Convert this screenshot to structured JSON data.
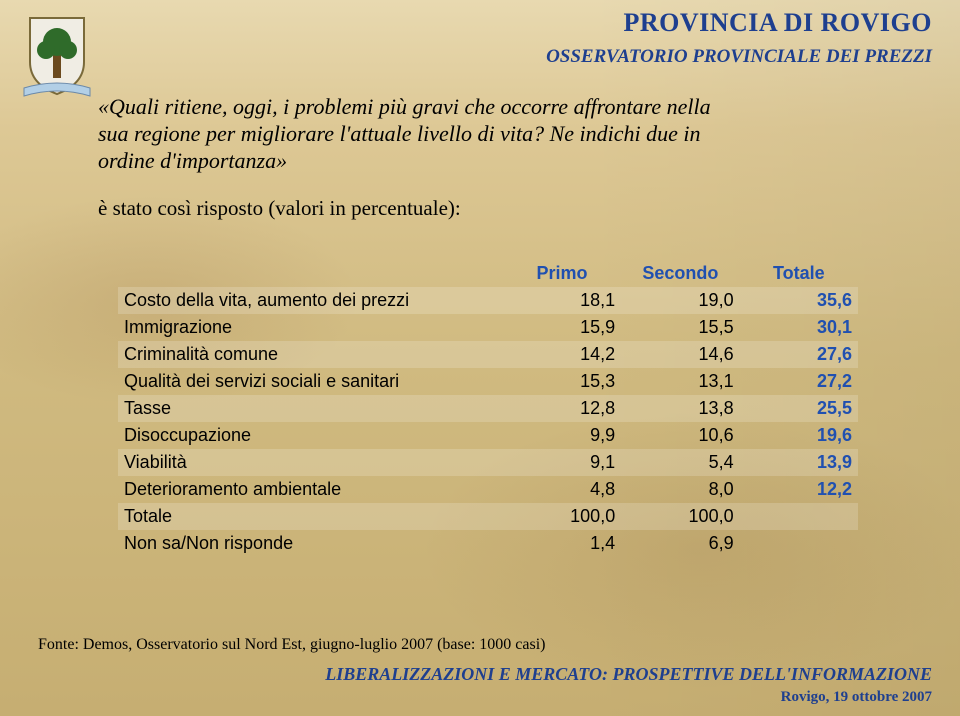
{
  "header": {
    "title": "PROVINCIA DI ROVIGO",
    "subtitle": "OSSERVATORIO PROVINCIALE DEI PREZZI",
    "color": "#1e3f8f"
  },
  "crest": {
    "shield_fill": "#f0ede4",
    "shield_stroke": "#7a6a3a",
    "tree_fill": "#2f6b2a",
    "trunk_fill": "#6b4a1e",
    "ribbon_fill": "#b2cfe6"
  },
  "question": {
    "lines": [
      "«Quali ritiene, oggi, i problemi più gravi che occorre affrontare nella",
      "sua regione per migliorare l'attuale livello di vita? Ne indichi due in",
      "ordine d'importanza»"
    ],
    "note": "è stato così risposto (valori in percentuale):"
  },
  "table": {
    "columns": [
      "",
      "Primo",
      "Secondo",
      "Totale"
    ],
    "header_color": "#2050b0",
    "totale_col_color": "#2050b0",
    "rows": [
      {
        "label": "Costo della vita, aumento dei prezzi",
        "primo": "18,1",
        "secondo": "19,0",
        "totale": "35,6"
      },
      {
        "label": "Immigrazione",
        "primo": "15,9",
        "secondo": "15,5",
        "totale": "30,1"
      },
      {
        "label": "Criminalità comune",
        "primo": "14,2",
        "secondo": "14,6",
        "totale": "27,6"
      },
      {
        "label": "Qualità dei servizi sociali e sanitari",
        "primo": "15,3",
        "secondo": "13,1",
        "totale": "27,2"
      },
      {
        "label": "Tasse",
        "primo": "12,8",
        "secondo": "13,8",
        "totale": "25,5"
      },
      {
        "label": "Disoccupazione",
        "primo": "9,9",
        "secondo": "10,6",
        "totale": "19,6"
      },
      {
        "label": "Viabilità",
        "primo": "9,1",
        "secondo": "5,4",
        "totale": "13,9"
      },
      {
        "label": "Deterioramento ambientale",
        "primo": "4,8",
        "secondo": "8,0",
        "totale": "12,2"
      }
    ],
    "totals_row": {
      "label": "Totale",
      "primo": "100,0",
      "secondo": "100,0",
      "totale": ""
    },
    "nonresp_row": {
      "label": "Non sa/Non risponde",
      "primo": "1,4",
      "secondo": "6,9",
      "totale": ""
    },
    "band_color": "rgba(255,255,255,0.18)",
    "fontsize": 18
  },
  "source": "Fonte: Demos, Osservatorio sul Nord Est, giugno-luglio 2007 (base: 1000 casi)",
  "footer": {
    "title": "LIBERALIZZAZIONI E MERCATO: PROSPETTIVE DELL'INFORMAZIONE",
    "sub": "Rovigo, 19 ottobre 2007",
    "color": "#1e3f8f"
  }
}
